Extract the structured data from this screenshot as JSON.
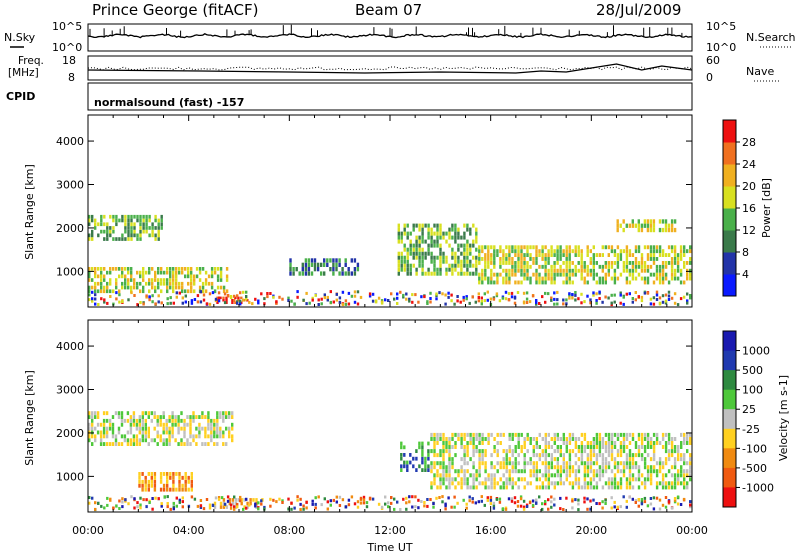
{
  "header": {
    "station": "Prince George (fitACF)",
    "beam": "Beam 07",
    "date": "28/Jul/2009"
  },
  "noise_panel": {
    "left_label": "N.Sky",
    "right_label": "N.Search",
    "y_top_tick": "10^5",
    "y_bottom_tick": "10^0",
    "right_top_tick": "10^5",
    "right_bottom_tick": "10^0"
  },
  "freq_panel": {
    "left_label_1": "Freq.",
    "left_label_2": "[MHz]",
    "left_top_tick": "18",
    "left_bottom_tick": "8",
    "right_label": "Nave",
    "right_top_tick": "60",
    "right_bottom_tick": "0"
  },
  "cpid_panel": {
    "label": "CPID",
    "mode": "normalsound (fast) -157"
  },
  "colors": {
    "power_scale": [
      "#0a1aff",
      "#2233a8",
      "#3a7a4a",
      "#4ab04a",
      "#d8e020",
      "#f0b020",
      "#f07020",
      "#ee1010"
    ],
    "velocity_scale": [
      "#ee1010",
      "#f05a10",
      "#f08a10",
      "#ffd020",
      "#c0c0c0",
      "#4ec83a",
      "#2e8a40",
      "#203ab0",
      "#1a1ab0"
    ]
  },
  "chart_data": [
    {
      "type": "heatmap",
      "title": "Power",
      "ylabel": "Slant Range [km]",
      "ylim": [
        180,
        4600
      ],
      "yticks": [
        "1000",
        "2000",
        "3000",
        "4000"
      ],
      "ytick_values": [
        1000,
        2000,
        3000,
        4000
      ],
      "colorbar_label": "Power [dB]",
      "colorbar_ticks": [
        "4",
        "8",
        "12",
        "16",
        "20",
        "24",
        "28"
      ],
      "colorbar_range": [
        0,
        32
      ],
      "echo_regions": [
        {
          "t_start": 0.0,
          "t_end": 3.0,
          "r_min": 1700,
          "r_max": 2300,
          "level": 3
        },
        {
          "t_start": 0.0,
          "t_end": 5.6,
          "r_min": 500,
          "r_max": 1100,
          "level": 4
        },
        {
          "t_start": 5.1,
          "t_end": 6.4,
          "r_min": 250,
          "r_max": 420,
          "level": 7
        },
        {
          "t_start": 8.0,
          "t_end": 10.8,
          "r_min": 900,
          "r_max": 1300,
          "level": 2
        },
        {
          "t_start": 12.3,
          "t_end": 15.5,
          "r_min": 900,
          "r_max": 2100,
          "level": 3
        },
        {
          "t_start": 15.5,
          "t_end": 24.0,
          "r_min": 700,
          "r_max": 1600,
          "level": 4
        },
        {
          "t_start": 21.0,
          "t_end": 23.4,
          "r_min": 1900,
          "r_max": 2200,
          "level": 4
        }
      ]
    },
    {
      "type": "heatmap",
      "title": "Velocity",
      "ylabel": "Slant Range [km]",
      "ylim": [
        180,
        4600
      ],
      "yticks": [
        "1000",
        "2000",
        "3000",
        "4000"
      ],
      "ytick_values": [
        1000,
        2000,
        3000,
        4000
      ],
      "colorbar_label": "Velocity [m s-1]",
      "colorbar_ticks": [
        "1000",
        "500",
        "100",
        "25",
        "-25",
        "-100",
        "-500",
        "-1000"
      ],
      "echo_regions": [
        {
          "t_start": 0.0,
          "t_end": 5.8,
          "r_min": 1700,
          "r_max": 2500,
          "level": 4
        },
        {
          "t_start": 2.0,
          "t_end": 4.2,
          "r_min": 650,
          "r_max": 1100,
          "level": 2
        },
        {
          "t_start": 5.0,
          "t_end": 7.0,
          "r_min": 250,
          "r_max": 500,
          "level": 3
        },
        {
          "t_start": 12.4,
          "t_end": 13.6,
          "r_min": 1100,
          "r_max": 1800,
          "level": 6
        },
        {
          "t_start": 13.6,
          "t_end": 24.0,
          "r_min": 700,
          "r_max": 2000,
          "level": 4
        }
      ]
    }
  ],
  "x_axis": {
    "label": "Time UT",
    "ticks": [
      "00:00",
      "04:00",
      "08:00",
      "12:00",
      "16:00",
      "20:00",
      "00:00"
    ]
  }
}
